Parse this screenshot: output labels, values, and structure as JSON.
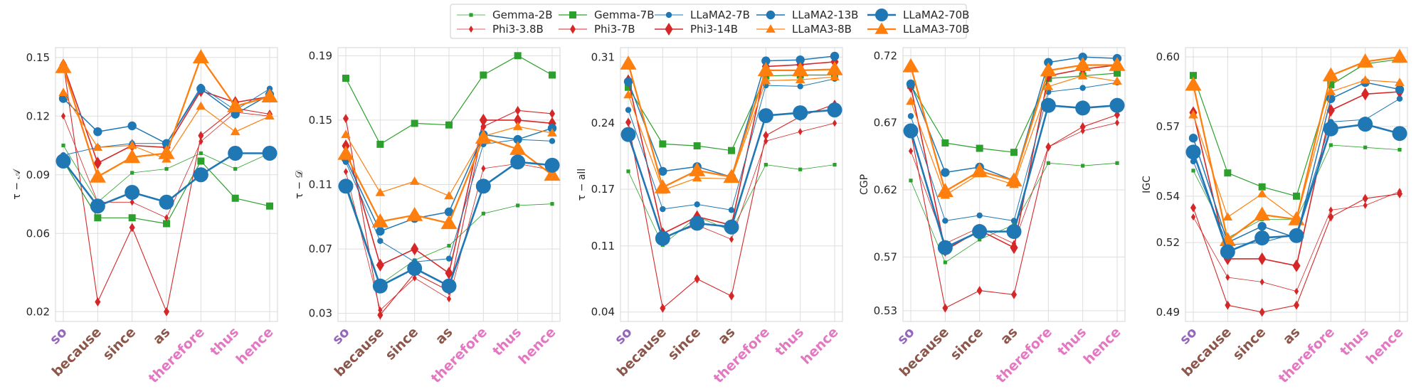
{
  "chart_data": {
    "type": "line",
    "categories": [
      "so",
      "because",
      "since",
      "as",
      "therefore",
      "thus",
      "hence"
    ],
    "category_groups": {
      "so": "purple",
      "because": "brown",
      "since": "brown",
      "as": "brown",
      "therefore": "pink",
      "thus": "pink",
      "hence": "pink"
    },
    "group_colors": {
      "purple": "#9467bd",
      "brown": "#8c564b",
      "pink": "#e377c2"
    },
    "legend": {
      "placement": "top-center",
      "entries": [
        {
          "name": "Gemma-2B",
          "color": "#2ca02c",
          "marker": "square",
          "size": "small"
        },
        {
          "name": "Gemma-7B",
          "color": "#2ca02c",
          "marker": "square",
          "size": "medium"
        },
        {
          "name": "LLaMA2-7B",
          "color": "#1f77b4",
          "marker": "circle",
          "size": "small"
        },
        {
          "name": "LLaMA2-13B",
          "color": "#1f77b4",
          "marker": "circle",
          "size": "medium"
        },
        {
          "name": "LLaMA2-70B",
          "color": "#1f77b4",
          "marker": "circle",
          "size": "large"
        },
        {
          "name": "Phi3-3.8B",
          "color": "#d62728",
          "marker": "diamond",
          "size": "small"
        },
        {
          "name": "Phi3-7B",
          "color": "#d62728",
          "marker": "diamond",
          "size": "medium"
        },
        {
          "name": "Phi3-14B",
          "color": "#d62728",
          "marker": "diamond",
          "size": "large"
        },
        {
          "name": "LLaMA3-8B",
          "color": "#ff7f0e",
          "marker": "triangle",
          "size": "medium"
        },
        {
          "name": "LLaMA3-70B",
          "color": "#ff7f0e",
          "marker": "triangle",
          "size": "large"
        }
      ]
    },
    "panels": [
      {
        "ylabel": "τ − 𝒜",
        "ylim": [
          0.015,
          0.155
        ],
        "yticks": [
          0.02,
          0.06,
          0.09,
          0.12,
          0.15
        ],
        "ytick_labels": [
          "0.02",
          "0.06",
          "0.09",
          "0.12",
          "0.15"
        ],
        "series": [
          {
            "name": "Gemma-2B",
            "values": [
              0.105,
              0.076,
              0.091,
              0.093,
              0.101,
              0.093,
              0.101
            ]
          },
          {
            "name": "Gemma-7B",
            "values": [
              0.097,
              0.068,
              0.068,
              0.065,
              0.097,
              0.078,
              0.074
            ]
          },
          {
            "name": "Phi3-3.8B",
            "values": [
              0.12,
              0.076,
              0.076,
              0.068,
              0.107,
              0.122,
              0.12
            ]
          },
          {
            "name": "Phi3-7B",
            "values": [
              0.147,
              0.025,
              0.063,
              0.02,
              0.11,
              0.124,
              0.121
            ]
          },
          {
            "name": "Phi3-14B",
            "values": [
              0.146,
              0.096,
              0.105,
              0.104,
              0.133,
              0.127,
              0.13
            ]
          },
          {
            "name": "LLaMA2-7B",
            "values": [
              0.1,
              0.104,
              0.106,
              0.106,
              0.135,
              0.123,
              0.134
            ]
          },
          {
            "name": "LLaMA2-13B",
            "values": [
              0.129,
              0.112,
              0.115,
              0.106,
              0.134,
              0.121,
              0.131
            ]
          },
          {
            "name": "LLaMA2-70B",
            "values": [
              0.097,
              0.074,
              0.081,
              0.076,
              0.09,
              0.101,
              0.101
            ]
          },
          {
            "name": "LLaMA3-8B",
            "values": [
              0.132,
              0.104,
              0.105,
              0.098,
              0.125,
              0.112,
              0.12
            ]
          },
          {
            "name": "LLaMA3-70B",
            "values": [
              0.145,
              0.089,
              0.099,
              0.101,
              0.15,
              0.125,
              0.13
            ]
          }
        ]
      },
      {
        "ylabel": "τ − 𝒟",
        "ylim": [
          0.025,
          0.195
        ],
        "yticks": [
          0.03,
          0.07,
          0.11,
          0.15,
          0.19
        ],
        "ytick_labels": [
          "0.03",
          "0.07",
          "0.11",
          "0.15",
          "0.19"
        ],
        "series": [
          {
            "name": "Gemma-2B",
            "values": [
              0.111,
              0.048,
              0.063,
              0.072,
              0.092,
              0.097,
              0.098
            ]
          },
          {
            "name": "Gemma-7B",
            "values": [
              0.176,
              0.135,
              0.148,
              0.147,
              0.178,
              0.19,
              0.178
            ]
          },
          {
            "name": "Phi3-3.8B",
            "values": [
              0.118,
              0.032,
              0.052,
              0.039,
              0.12,
              0.123,
              0.119
            ]
          },
          {
            "name": "Phi3-7B",
            "values": [
              0.151,
              0.029,
              0.055,
              0.044,
              0.146,
              0.156,
              0.154
            ]
          },
          {
            "name": "Phi3-14B",
            "values": [
              0.134,
              0.06,
              0.07,
              0.055,
              0.15,
              0.15,
              0.148
            ]
          },
          {
            "name": "LLaMA2-7B",
            "values": [
              0.124,
              0.075,
              0.062,
              0.064,
              0.135,
              0.138,
              0.137
            ]
          },
          {
            "name": "LLaMA2-13B",
            "values": [
              0.126,
              0.081,
              0.089,
              0.093,
              0.141,
              0.138,
              0.145
            ]
          },
          {
            "name": "LLaMA2-70B",
            "values": [
              0.109,
              0.047,
              0.058,
              0.047,
              0.109,
              0.124,
              0.122
            ]
          },
          {
            "name": "LLaMA3-8B",
            "values": [
              0.141,
              0.105,
              0.112,
              0.103,
              0.14,
              0.146,
              0.142
            ]
          },
          {
            "name": "LLaMA3-70B",
            "values": [
              0.129,
              0.087,
              0.091,
              0.086,
              0.139,
              0.132,
              0.116
            ]
          }
        ]
      },
      {
        "ylabel": "τ − all",
        "ylim": [
          0.03,
          0.32
        ],
        "yticks": [
          0.04,
          0.11,
          0.17,
          0.24,
          0.31
        ],
        "ytick_labels": [
          "0.04",
          "0.11",
          "0.17",
          "0.24",
          "0.31"
        ],
        "series": [
          {
            "name": "Gemma-2B",
            "values": [
              0.189,
              0.111,
              0.141,
              0.126,
              0.196,
              0.191,
              0.196
            ]
          },
          {
            "name": "Gemma-7B",
            "values": [
              0.278,
              0.218,
              0.216,
              0.211,
              0.29,
              0.291,
              0.291
            ]
          },
          {
            "name": "Phi3-3.8B",
            "values": [
              0.225,
              0.119,
              0.132,
              0.117,
              0.221,
              0.231,
              0.24
            ]
          },
          {
            "name": "Phi3-7B",
            "values": [
              0.241,
              0.044,
              0.075,
              0.057,
              0.227,
              0.247,
              0.26
            ]
          },
          {
            "name": "Phi3-14B",
            "values": [
              0.285,
              0.123,
              0.141,
              0.132,
              0.3,
              0.302,
              0.305
            ]
          },
          {
            "name": "LLaMA2-7B",
            "values": [
              0.254,
              0.149,
              0.154,
              0.148,
              0.28,
              0.279,
              0.287
            ]
          },
          {
            "name": "LLaMA2-13B",
            "values": [
              0.284,
              0.189,
              0.194,
              0.183,
              0.306,
              0.307,
              0.311
            ]
          },
          {
            "name": "LLaMA2-70B",
            "values": [
              0.228,
              0.118,
              0.134,
              0.13,
              0.248,
              0.251,
              0.254
            ]
          },
          {
            "name": "LLaMA3-8B",
            "values": [
              0.27,
              0.169,
              0.182,
              0.181,
              0.285,
              0.286,
              0.289
            ]
          },
          {
            "name": "LLaMA3-70B",
            "values": [
              0.303,
              0.172,
              0.19,
              0.183,
              0.296,
              0.296,
              0.297
            ]
          }
        ]
      },
      {
        "ylabel": "CGP",
        "ylim": [
          0.522,
          0.726
        ],
        "yticks": [
          0.53,
          0.57,
          0.62,
          0.67,
          0.72
        ],
        "ytick_labels": [
          "0.53",
          "0.57",
          "0.62",
          "0.67",
          "0.72"
        ],
        "series": [
          {
            "name": "Gemma-2B",
            "values": [
              0.627,
              0.566,
              0.583,
              0.594,
              0.64,
              0.638,
              0.64
            ]
          },
          {
            "name": "Gemma-7B",
            "values": [
              0.698,
              0.655,
              0.651,
              0.648,
              0.703,
              0.705,
              0.707
            ]
          },
          {
            "name": "Phi3-3.8B",
            "values": [
              0.649,
              0.58,
              0.592,
              0.58,
              0.652,
              0.664,
              0.67
            ]
          },
          {
            "name": "Phi3-7B",
            "values": [
              0.663,
              0.532,
              0.545,
              0.542,
              0.652,
              0.667,
              0.676
            ]
          },
          {
            "name": "Phi3-14B",
            "values": [
              0.697,
              0.575,
              0.59,
              0.577,
              0.705,
              0.71,
              0.713
            ]
          },
          {
            "name": "LLaMA2-7B",
            "values": [
              0.675,
              0.597,
              0.601,
              0.597,
              0.693,
              0.696,
              0.7
            ]
          },
          {
            "name": "LLaMA2-13B",
            "values": [
              0.699,
              0.633,
              0.637,
              0.627,
              0.715,
              0.719,
              0.718
            ]
          },
          {
            "name": "LLaMA2-70B",
            "values": [
              0.664,
              0.577,
              0.589,
              0.589,
              0.683,
              0.681,
              0.683
            ]
          },
          {
            "name": "LLaMA3-8B",
            "values": [
              0.686,
              0.616,
              0.632,
              0.624,
              0.697,
              0.705,
              0.701
            ]
          },
          {
            "name": "LLaMA3-70B",
            "values": [
              0.712,
              0.619,
              0.634,
              0.627,
              0.709,
              0.713,
              0.713
            ]
          }
        ]
      },
      {
        "ylabel": "IGC",
        "ylim": [
          0.486,
          0.604
        ],
        "yticks": [
          0.49,
          0.52,
          0.54,
          0.57,
          0.6
        ],
        "ytick_labels": [
          "0.49",
          "0.52",
          "0.54",
          "0.57",
          "0.60"
        ],
        "series": [
          {
            "name": "Gemma-2B",
            "values": [
              0.551,
              0.522,
              0.53,
              0.53,
              0.562,
              0.561,
              0.56
            ]
          },
          {
            "name": "Gemma-7B",
            "values": [
              0.592,
              0.55,
              0.544,
              0.54,
              0.588,
              0.597,
              0.599
            ]
          },
          {
            "name": "Phi3-3.8B",
            "values": [
              0.531,
              0.505,
              0.503,
              0.499,
              0.534,
              0.536,
              0.542
            ]
          },
          {
            "name": "Phi3-7B",
            "values": [
              0.535,
              0.493,
              0.49,
              0.493,
              0.531,
              0.539,
              0.541
            ]
          },
          {
            "name": "Phi3-14B",
            "values": [
              0.576,
              0.513,
              0.513,
              0.51,
              0.577,
              0.584,
              0.585
            ]
          },
          {
            "name": "LLaMA2-7B",
            "values": [
              0.555,
              0.519,
              0.52,
              0.524,
              0.572,
              0.573,
              0.582
            ]
          },
          {
            "name": "LLaMA2-13B",
            "values": [
              0.565,
              0.52,
              0.527,
              0.522,
              0.582,
              0.589,
              0.586
            ]
          },
          {
            "name": "LLaMA2-70B",
            "values": [
              0.559,
              0.516,
              0.522,
              0.523,
              0.569,
              0.571,
              0.567
            ]
          },
          {
            "name": "LLaMA3-8B",
            "values": [
              0.575,
              0.531,
              0.541,
              0.53,
              0.585,
              0.59,
              0.589
            ]
          },
          {
            "name": "LLaMA3-70B",
            "values": [
              0.588,
              0.521,
              0.532,
              0.53,
              0.592,
              0.598,
              0.6
            ]
          }
        ]
      }
    ]
  }
}
